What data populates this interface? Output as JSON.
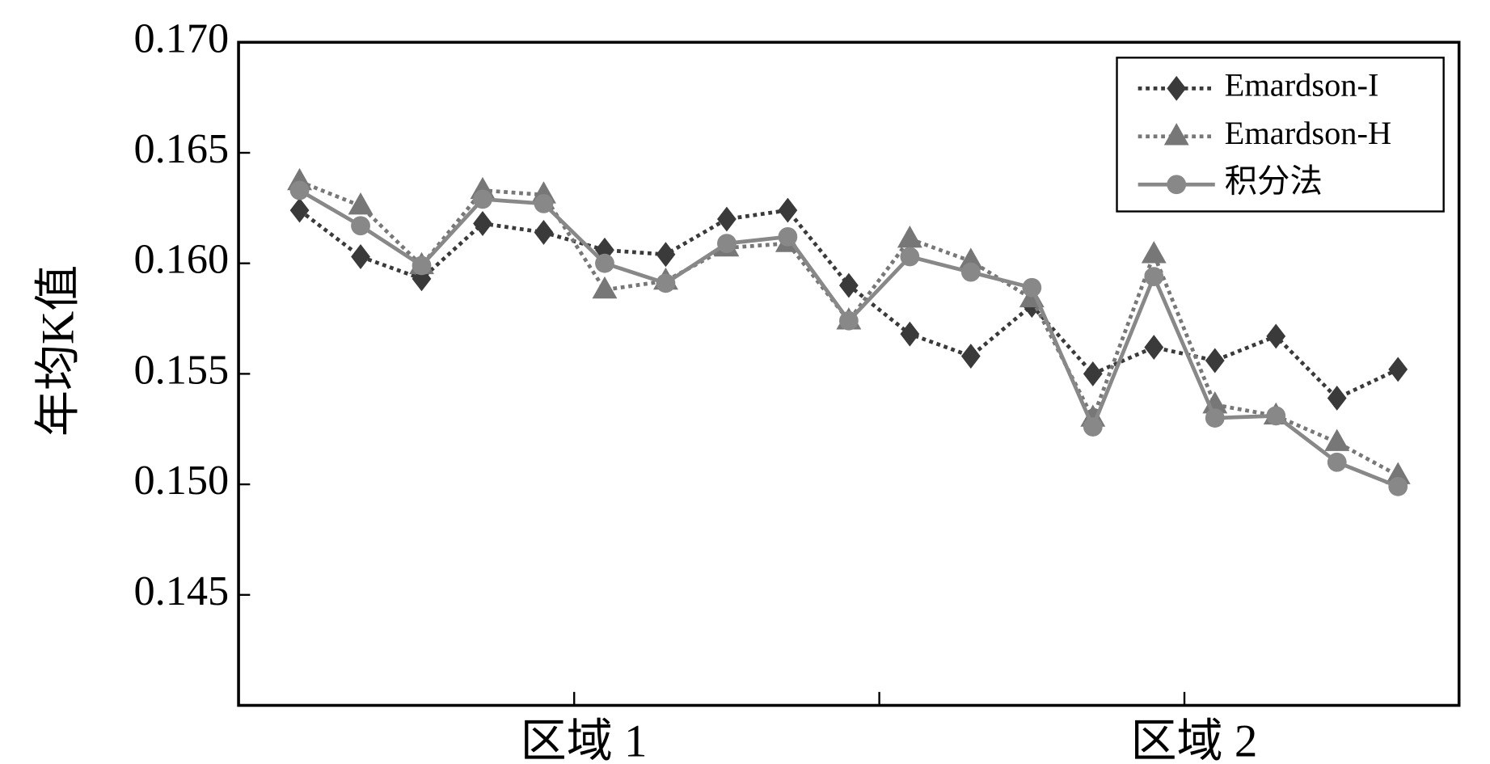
{
  "chart_data": {
    "type": "line",
    "y_label": "年均K值",
    "x": [
      1,
      2,
      3,
      4,
      5,
      6,
      7,
      8,
      9,
      10,
      11,
      12,
      13,
      14,
      15,
      16,
      17,
      18,
      19
    ],
    "xlim": [
      0,
      20
    ],
    "xticks": [
      {
        "value": 5.5,
        "label": "区域 1"
      },
      {
        "value": 10.5,
        "label": null
      },
      {
        "value": 15.5,
        "label": "区域 2"
      }
    ],
    "ylim": [
      0.14,
      0.17
    ],
    "yticks": [
      0.145,
      {
        "value": 0.15,
        "label": "0.150"
      },
      0.155,
      {
        "value": 0.16,
        "label": "0.160"
      },
      0.165,
      {
        "value": 0.17,
        "label": "0.170"
      }
    ],
    "legend": "upper right",
    "series": [
      {
        "name": "Emardson-I",
        "color": "#3a3a3a",
        "marker": "diamond",
        "linestyle": "dotted",
        "values": [
          0.1624,
          0.1603,
          0.1593,
          0.1618,
          0.1614,
          0.1606,
          0.1604,
          0.162,
          0.1624,
          0.159,
          0.1568,
          0.1558,
          0.1581,
          0.155,
          0.1562,
          0.1556,
          0.1567,
          0.1539,
          0.1552
        ]
      },
      {
        "name": "Emardson-H",
        "color": "#777777",
        "marker": "triangle",
        "linestyle": "dotted",
        "values": [
          0.1637,
          0.1626,
          0.1599,
          0.1633,
          0.1631,
          0.1588,
          0.1592,
          0.1607,
          0.1609,
          0.1574,
          0.1611,
          0.1601,
          0.1584,
          0.153,
          0.1604,
          0.1536,
          0.1531,
          0.1519,
          0.1504
        ]
      },
      {
        "name": "积分法",
        "color": "#888888",
        "marker": "circle",
        "linestyle": "solid",
        "values": [
          0.1633,
          0.1617,
          0.1599,
          0.1629,
          0.1627,
          0.16,
          0.1591,
          0.1609,
          0.1612,
          0.1574,
          0.1603,
          0.1596,
          0.1589,
          0.1526,
          0.1594,
          0.153,
          0.1531,
          0.151,
          0.1499
        ]
      }
    ]
  }
}
